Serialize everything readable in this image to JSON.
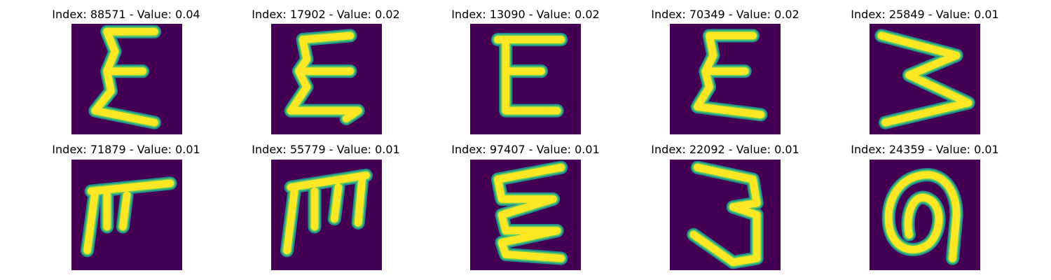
{
  "colors": {
    "background": "#440154",
    "stroke_edge": "#21908c",
    "stroke_mid": "#5ec962",
    "stroke_core": "#fde725"
  },
  "panels": [
    {
      "title": "Index: 88571 - Value: 0.04",
      "glyph": "sigma-e"
    },
    {
      "title": "Index: 17902 - Value: 0.02",
      "glyph": "sigma-e-hook"
    },
    {
      "title": "Index: 13090 - Value: 0.02",
      "glyph": "letter-e"
    },
    {
      "title": "Index: 70349 - Value: 0.02",
      "glyph": "sigma-e"
    },
    {
      "title": "Index: 25849 - Value: 0.01",
      "glyph": "rotated-m"
    },
    {
      "title": "Index: 71879 - Value: 0.01",
      "glyph": "letter-f"
    },
    {
      "title": "Index: 55779 - Value: 0.01",
      "glyph": "letter-m"
    },
    {
      "title": "Index: 97407 - Value: 0.01",
      "glyph": "sigma-e-wide"
    },
    {
      "title": "Index: 22092 - Value: 0.01",
      "glyph": "digit-3"
    },
    {
      "title": "Index: 24359 - Value: 0.01",
      "glyph": "loop-a"
    }
  ]
}
